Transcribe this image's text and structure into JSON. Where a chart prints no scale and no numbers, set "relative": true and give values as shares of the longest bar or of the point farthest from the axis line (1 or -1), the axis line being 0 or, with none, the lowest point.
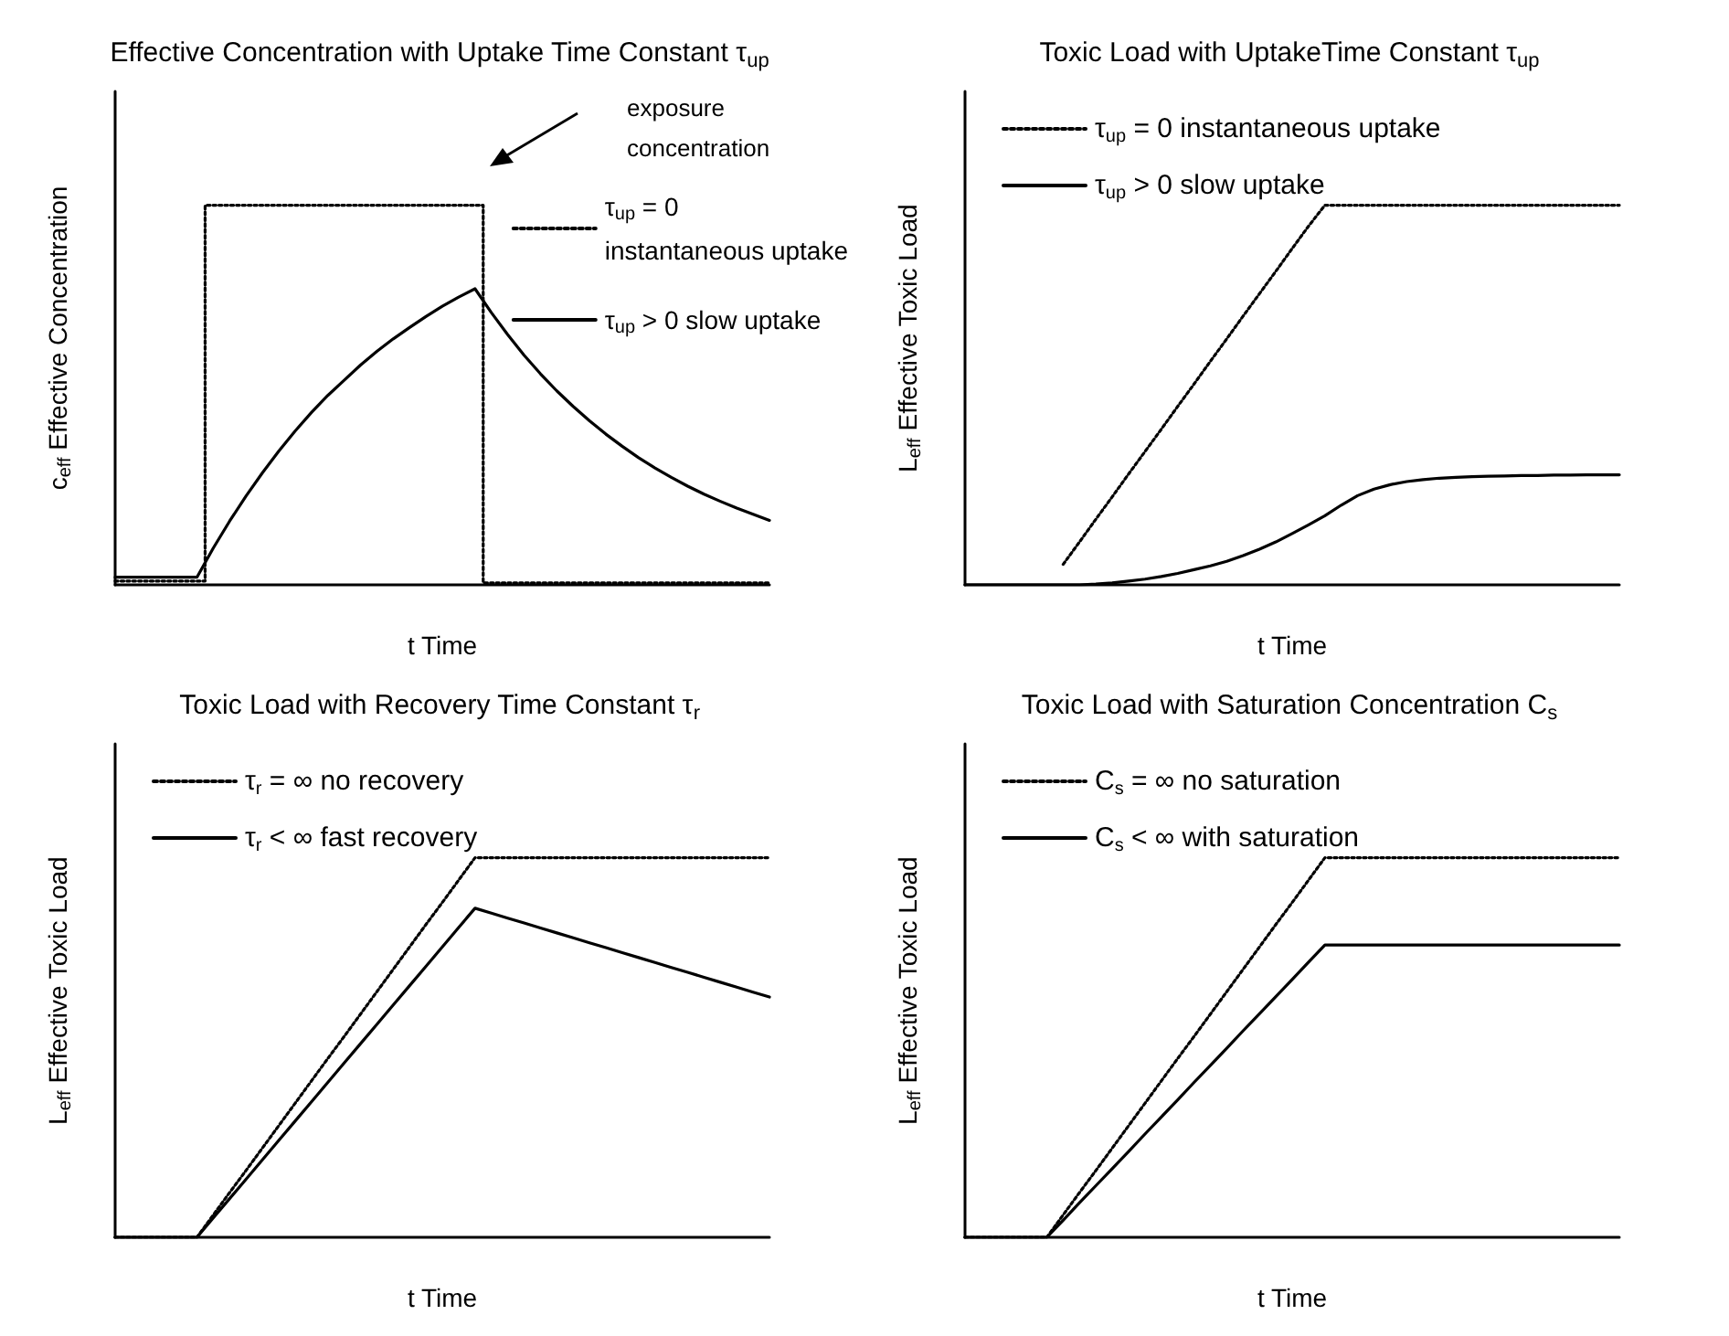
{
  "chart_data": [
    {
      "type": "line",
      "title": "Effective Concentration with Uptake Time Constant τ$_{up}$",
      "xlabel": "t Time",
      "ylabel": "c$_{eff}$ Effective Concentration",
      "relative": true,
      "legend": "right",
      "annotations": [
        "exposure concentration"
      ],
      "categories": [
        null,
        null,
        null,
        null,
        null,
        null,
        null,
        null,
        null,
        null,
        null,
        null,
        null,
        null,
        null,
        null,
        null,
        null,
        null,
        null,
        null,
        null,
        null,
        null,
        null,
        null,
        null,
        null,
        null,
        null,
        null,
        null,
        null,
        null,
        null,
        null,
        null,
        null,
        null,
        null,
        null
      ],
      "series": [
        {
          "name": "τ$_{up}$ = 0 instantaneous uptake",
          "type": "step",
          "color": "#000000",
          "line_style": "dotted",
          "values": [
            0.01,
            0.01,
            0.01,
            0.01,
            0.01,
            0.01,
            1,
            1,
            1,
            1,
            1,
            1,
            1,
            1,
            1,
            1,
            1,
            1,
            1,
            1,
            1,
            1,
            1,
            0.005,
            0.005,
            0.005,
            0.005,
            0.005,
            0.005,
            0.005,
            0.005,
            0.005,
            0.005,
            0.005,
            0.005,
            0.005,
            0.005,
            0.005,
            0.005,
            0.005,
            0.005
          ]
        },
        {
          "name": "τ$_{up}$ > 0 slow uptake",
          "color": "#000000",
          "line_style": "solid",
          "values": [
            0.02,
            0.02,
            0.02,
            0.02,
            0.02,
            0.02,
            0.097,
            0.168,
            0.234,
            0.295,
            0.352,
            0.405,
            0.454,
            0.499,
            0.539,
            0.579,
            0.615,
            0.648,
            0.678,
            0.707,
            0.734,
            0.758,
            0.78,
            0.717,
            0.659,
            0.605,
            0.556,
            0.511,
            0.47,
            0.432,
            0.397,
            0.365,
            0.335,
            0.308,
            0.283,
            0.26,
            0.239,
            0.22,
            0.202,
            0.186,
            0.17
          ]
        }
      ]
    },
    {
      "type": "line",
      "title": "Toxic Load with UptakeTime Constant τ$_{up}$",
      "xlabel": "t Time",
      "ylabel": "L$_{eff}$ Effective Toxic Load",
      "relative": true,
      "legend": "top left",
      "categories": [
        null,
        null,
        null,
        null,
        null,
        null,
        null,
        null,
        null,
        null,
        null,
        null,
        null,
        null,
        null,
        null,
        null,
        null,
        null,
        null,
        null,
        null,
        null,
        null,
        null,
        null,
        null,
        null,
        null,
        null,
        null,
        null,
        null,
        null,
        null,
        null,
        null,
        null,
        null,
        null,
        null
      ],
      "series": [
        {
          "name": "τ$_{up}$ = 0 instantaneous uptake",
          "color": "#000000",
          "line_style": "dotted",
          "values": [
            null,
            null,
            null,
            null,
            null,
            null,
            0.054,
            0.113,
            0.173,
            0.232,
            0.292,
            0.351,
            0.41,
            0.47,
            0.529,
            0.589,
            0.648,
            0.708,
            0.767,
            0.826,
            0.886,
            0.945,
            1,
            1,
            1,
            1,
            1,
            1,
            1,
            1,
            1,
            1,
            1,
            1,
            1,
            1,
            1,
            1,
            1,
            1,
            1
          ]
        },
        {
          "name": "τ$_{up}$ > 0 slow uptake",
          "color": "#000000",
          "line_style": "solid",
          "values": [
            0,
            0,
            0,
            0,
            0,
            0,
            0,
            0,
            0.002,
            0.005,
            0.01,
            0.015,
            0.022,
            0.03,
            0.04,
            0.05,
            0.062,
            0.077,
            0.094,
            0.113,
            0.135,
            0.158,
            0.182,
            0.21,
            0.235,
            0.252,
            0.264,
            0.272,
            0.277,
            0.281,
            0.283,
            0.285,
            0.286,
            0.287,
            0.288,
            0.288,
            0.289,
            0.289,
            0.29,
            0.29,
            0.29
          ]
        }
      ]
    },
    {
      "type": "line",
      "title": "Toxic Load with Recovery Time Constant τ$_{r}$",
      "xlabel": "t Time",
      "ylabel": "L$_{eff}$ Effective Toxic Load",
      "relative": true,
      "legend": "top left",
      "categories": [
        null,
        null,
        null,
        null,
        null,
        null,
        null,
        null,
        null,
        null,
        null,
        null,
        null,
        null,
        null,
        null,
        null,
        null,
        null,
        null,
        null,
        null,
        null,
        null,
        null,
        null,
        null,
        null,
        null,
        null,
        null,
        null,
        null,
        null,
        null,
        null,
        null,
        null,
        null,
        null,
        null
      ],
      "series": [
        {
          "name": "τ$_{r}$ = ∞ no recovery",
          "color": "#000000",
          "line_style": "dotted",
          "values": [
            0,
            0,
            0,
            0,
            0,
            0,
            0.059,
            0.118,
            0.176,
            0.235,
            0.294,
            0.353,
            0.412,
            0.471,
            0.529,
            0.588,
            0.647,
            0.706,
            0.765,
            0.824,
            0.882,
            0.941,
            1,
            1,
            1,
            1,
            1,
            1,
            1,
            1,
            1,
            1,
            1,
            1,
            1,
            1,
            1,
            1,
            1,
            1,
            1
          ]
        },
        {
          "name": "τ$_{r}$ < ∞ fast recovery",
          "color": "#000000",
          "line_style": "solid",
          "values": [
            0,
            0,
            0,
            0,
            0,
            0,
            0.051,
            0.102,
            0.153,
            0.204,
            0.255,
            0.306,
            0.357,
            0.408,
            0.459,
            0.51,
            0.561,
            0.612,
            0.663,
            0.714,
            0.765,
            0.816,
            0.867,
            0.854,
            0.841,
            0.828,
            0.815,
            0.802,
            0.789,
            0.776,
            0.763,
            0.75,
            0.737,
            0.724,
            0.711,
            0.698,
            0.685,
            0.672,
            0.659,
            0.646,
            0.633
          ]
        }
      ]
    },
    {
      "type": "line",
      "title": "Toxic Load with Saturation Concentration C$_{s}$",
      "xlabel": "t Time",
      "ylabel": "L$_{eff}$ Effective Toxic Load",
      "relative": true,
      "legend": "top left",
      "categories": [
        null,
        null,
        null,
        null,
        null,
        null,
        null,
        null,
        null,
        null,
        null,
        null,
        null,
        null,
        null,
        null,
        null,
        null,
        null,
        null,
        null,
        null,
        null,
        null,
        null,
        null,
        null,
        null,
        null,
        null,
        null,
        null,
        null,
        null,
        null,
        null,
        null,
        null,
        null,
        null,
        null
      ],
      "series": [
        {
          "name": "C$_{s}$ = ∞ no saturation",
          "color": "#000000",
          "line_style": "dotted",
          "values": [
            0,
            0,
            0,
            0,
            0,
            0,
            0.059,
            0.118,
            0.176,
            0.235,
            0.294,
            0.353,
            0.412,
            0.471,
            0.529,
            0.588,
            0.647,
            0.706,
            0.765,
            0.824,
            0.882,
            0.941,
            1,
            1,
            1,
            1,
            1,
            1,
            1,
            1,
            1,
            1,
            1,
            1,
            1,
            1,
            1,
            1,
            1,
            1,
            1
          ]
        },
        {
          "name": "C$_{s}$ < ∞ with saturation",
          "color": "#000000",
          "line_style": "solid",
          "values": [
            0,
            0,
            0,
            0,
            0,
            0,
            0.045,
            0.091,
            0.136,
            0.181,
            0.226,
            0.272,
            0.317,
            0.362,
            0.408,
            0.453,
            0.498,
            0.544,
            0.589,
            0.634,
            0.679,
            0.725,
            0.77,
            0.77,
            0.77,
            0.77,
            0.77,
            0.77,
            0.77,
            0.77,
            0.77,
            0.77,
            0.77,
            0.77,
            0.77,
            0.77,
            0.77,
            0.77,
            0.77,
            0.77,
            0.77
          ]
        }
      ]
    }
  ]
}
